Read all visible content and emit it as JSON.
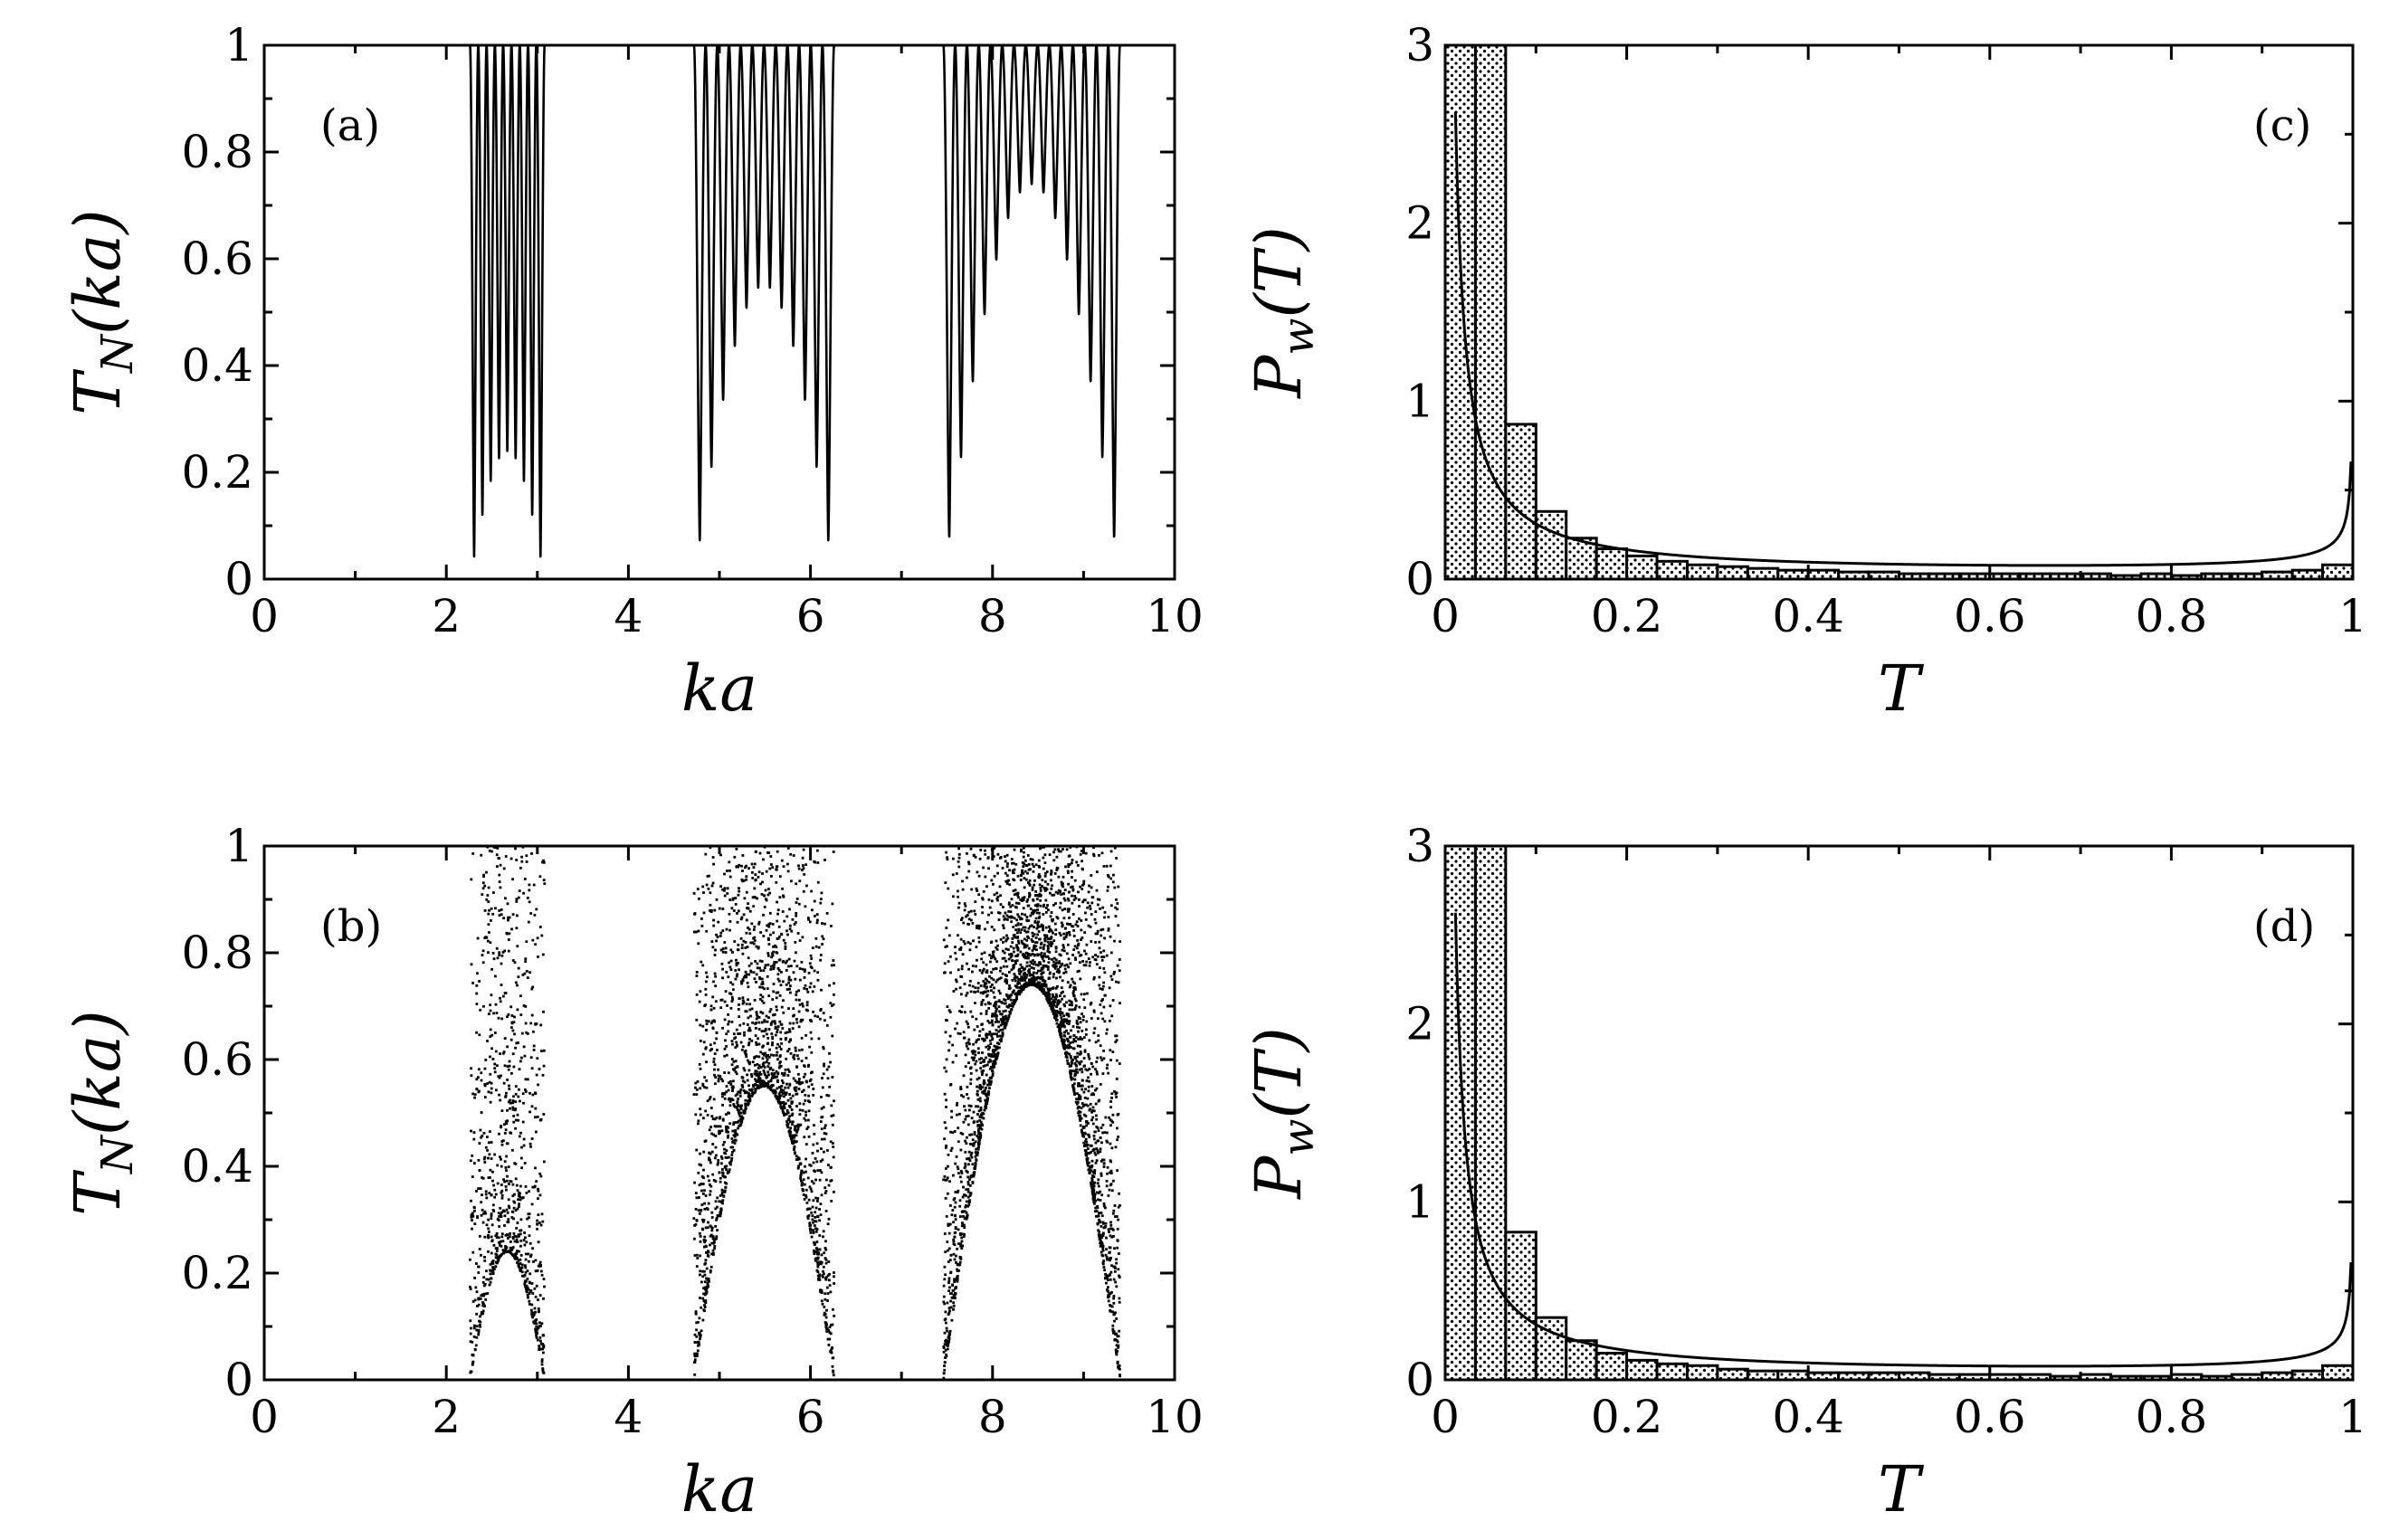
{
  "figure": {
    "description_hidden": false
  },
  "chart_data": [
    {
      "id": "a",
      "type": "line",
      "label": "(a)",
      "xlabel": "ka",
      "ylabel": "T_N(ka)",
      "xlim": [
        0,
        10
      ],
      "ylim": [
        0,
        1
      ],
      "xticks": [
        0,
        2,
        4,
        6,
        8,
        10
      ],
      "xtick_labels": [
        "0",
        "2",
        "4",
        "6",
        "8",
        "10"
      ],
      "yticks": [
        0,
        0.2,
        0.4,
        0.6,
        0.8,
        1
      ],
      "ytick_labels": [
        "0",
        "0.2",
        "0.4",
        "0.6",
        "0.8",
        "1"
      ],
      "bands": [
        {
          "start": 2.26,
          "end": 3.08,
          "oscillations": 9,
          "min_envelope_peak": 0.24
        },
        {
          "start": 4.72,
          "end": 6.26,
          "oscillations": 12,
          "min_envelope_peak": 0.55
        },
        {
          "start": 7.46,
          "end": 9.4,
          "oscillations": 15,
          "min_envelope_peak": 0.74
        }
      ]
    },
    {
      "id": "b",
      "type": "scatter",
      "label": "(b)",
      "xlabel": "ka",
      "ylabel": "T_N(ka)",
      "xlim": [
        0,
        10
      ],
      "ylim": [
        0,
        1
      ],
      "xticks": [
        0,
        2,
        4,
        6,
        8,
        10
      ],
      "xtick_labels": [
        "0",
        "2",
        "4",
        "6",
        "8",
        "10"
      ],
      "yticks": [
        0,
        0.2,
        0.4,
        0.6,
        0.8,
        1
      ],
      "ytick_labels": [
        "0",
        "0.2",
        "0.4",
        "0.6",
        "0.8",
        "1"
      ],
      "bands": [
        {
          "start": 2.26,
          "end": 3.08,
          "min_envelope_peak": 0.24,
          "points": 900
        },
        {
          "start": 4.72,
          "end": 6.26,
          "min_envelope_peak": 0.55,
          "points": 1900
        },
        {
          "start": 7.46,
          "end": 9.4,
          "min_envelope_peak": 0.74,
          "points": 2800
        }
      ]
    },
    {
      "id": "c",
      "type": "bar",
      "label": "(c)",
      "xlabel": "T",
      "ylabel": "P_w(T)",
      "xlim": [
        0,
        1
      ],
      "ylim": [
        0,
        3
      ],
      "xticks": [
        0,
        0.2,
        0.4,
        0.6,
        0.8,
        1
      ],
      "xtick_labels": [
        "0",
        "0.2",
        "0.4",
        "0.6",
        "0.8",
        "1"
      ],
      "yticks": [
        0,
        1,
        2,
        3
      ],
      "ytick_labels": [
        "0",
        "1",
        "2",
        "3"
      ],
      "bin_width": 0.0333,
      "values": [
        3.0,
        3.0,
        0.87,
        0.38,
        0.23,
        0.17,
        0.13,
        0.1,
        0.08,
        0.07,
        0.06,
        0.05,
        0.05,
        0.04,
        0.04,
        0.03,
        0.03,
        0.03,
        0.03,
        0.03,
        0.03,
        0.03,
        0.02,
        0.03,
        0.02,
        0.03,
        0.03,
        0.04,
        0.05,
        0.08
      ],
      "fit_curve": "P_w(T) ~ 1/(T sqrt(1-T))"
    },
    {
      "id": "d",
      "type": "bar",
      "label": "(d)",
      "xlabel": "T",
      "ylabel": "P_w(T)",
      "xlim": [
        0,
        1
      ],
      "ylim": [
        0,
        3
      ],
      "xticks": [
        0,
        0.2,
        0.4,
        0.6,
        0.8,
        1
      ],
      "xtick_labels": [
        "0",
        "0.2",
        "0.4",
        "0.6",
        "0.8",
        "1"
      ],
      "yticks": [
        0,
        1,
        2,
        3
      ],
      "ytick_labels": [
        "0",
        "1",
        "2",
        "3"
      ],
      "bin_width": 0.0333,
      "values": [
        3.0,
        3.0,
        0.83,
        0.35,
        0.22,
        0.15,
        0.11,
        0.09,
        0.08,
        0.06,
        0.05,
        0.05,
        0.04,
        0.04,
        0.04,
        0.04,
        0.03,
        0.03,
        0.03,
        0.03,
        0.02,
        0.03,
        0.02,
        0.02,
        0.03,
        0.02,
        0.03,
        0.04,
        0.05,
        0.08
      ],
      "fit_curve": "P_w(T) ~ 1/(T sqrt(1-T))"
    }
  ]
}
